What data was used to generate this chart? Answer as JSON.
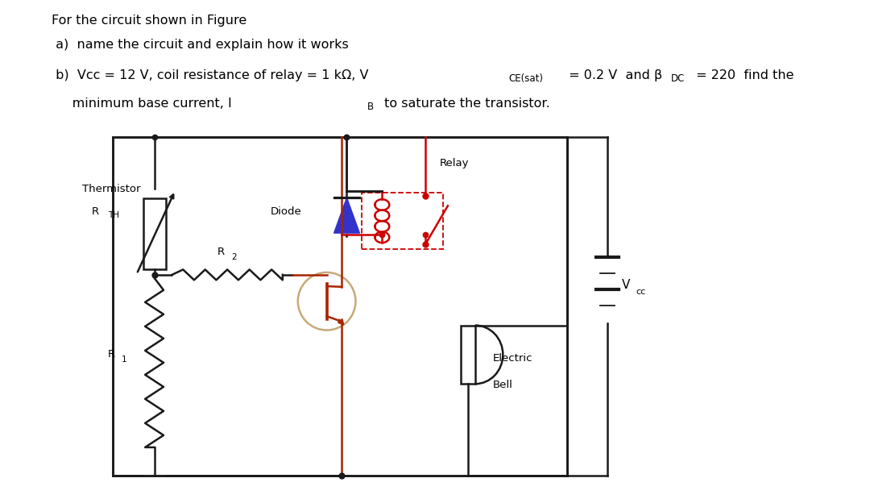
{
  "bg_color": "#ffffff",
  "circuit_color": "#1a1a1a",
  "relay_color": "#cc0000",
  "diode_color": "#3333cc",
  "transistor_circle_color": "#c8a87a",
  "transistor_line_color": "#aa2200",
  "relay_box_color": "#cc3333",
  "text_line1": "For the circuit shown in Figure",
  "text_line2": " a)  name the circuit and explain how it works",
  "text_line3_pre": " b)  Vcc = 12 V, coil resistance of relay = 1 kΩ, V",
  "text_line3_sub1": "CE(sat)",
  "text_line3_mid": " = 0.2 V  and β",
  "text_line3_sub2": "DC",
  "text_line3_end": " = 220  find the",
  "text_line4_pre": "     minimum base current, I",
  "text_line4_sub": "B",
  "text_line4_end": " to saturate the transistor.",
  "label_thermistor": "Thermistor",
  "label_rth": "R",
  "label_rth_sub": "TH",
  "label_diode": "Diode",
  "label_relay": "Relay",
  "label_r1": "R",
  "label_r1_sub": "1",
  "label_r2": "R",
  "label_r2_sub": "2",
  "label_bell_line1": "Electric",
  "label_bell_line2": "Bell",
  "label_vcc": "V",
  "label_vcc_sub": "cc",
  "fig_w": 10.8,
  "fig_h": 6.19,
  "dpi": 100
}
